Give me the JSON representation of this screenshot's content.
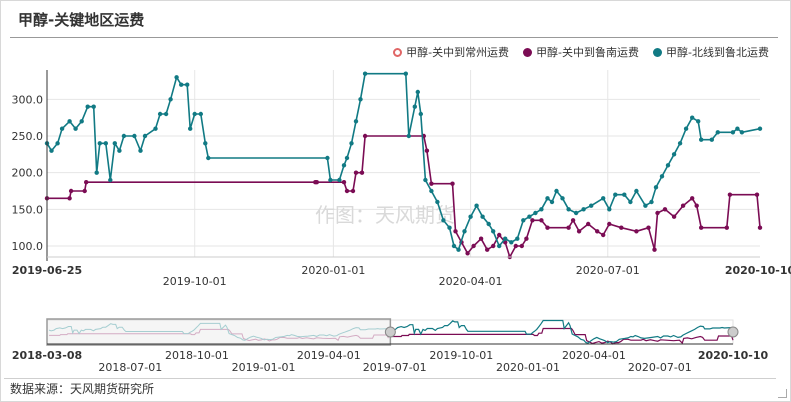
{
  "title": "甲醇-关键地区运费",
  "source": "数据来源：天风期货研究所",
  "watermark": "作图：天风期货",
  "chart_data": {
    "type": "line",
    "x_start": "2019-06-25",
    "x_end": "2020-10-10",
    "ylim": [
      85,
      340
    ],
    "yticks": [
      100,
      150,
      200,
      250,
      300
    ],
    "ytick_labels": [
      "100.0",
      "150.0",
      "200.0",
      "250.0",
      "300.0"
    ],
    "xticks": [
      "2019-06-25",
      "2019-10-01",
      "2020-01-01",
      "2020-04-01",
      "2020-07-01",
      "2020-10-10"
    ],
    "grid": true,
    "legend_position": "top-right",
    "series": [
      {
        "name": "甲醇-关中到常州运费",
        "color": "#e06666",
        "marker": "hollow-circle",
        "points": []
      },
      {
        "name": "甲醇-关中到鲁南运费",
        "color": "#7b0c54",
        "marker": "filled-circle",
        "points": [
          [
            "2019-06-25",
            165
          ],
          [
            "2019-07-10",
            165
          ],
          [
            "2019-07-11",
            175
          ],
          [
            "2019-07-20",
            175
          ],
          [
            "2019-07-21",
            187
          ],
          [
            "2019-12-20",
            187
          ],
          [
            "2019-12-21",
            187
          ],
          [
            "2020-01-08",
            187
          ],
          [
            "2020-01-10",
            175
          ],
          [
            "2020-01-14",
            175
          ],
          [
            "2020-01-16",
            200
          ],
          [
            "2020-01-20",
            200
          ],
          [
            "2020-01-22",
            250
          ],
          [
            "2020-03-01",
            250
          ],
          [
            "2020-03-03",
            230
          ],
          [
            "2020-03-06",
            185
          ],
          [
            "2020-03-20",
            185
          ],
          [
            "2020-03-22",
            120
          ],
          [
            "2020-03-26",
            105
          ],
          [
            "2020-03-30",
            90
          ],
          [
            "2020-04-03",
            100
          ],
          [
            "2020-04-08",
            110
          ],
          [
            "2020-04-12",
            95
          ],
          [
            "2020-04-16",
            100
          ],
          [
            "2020-04-20",
            115
          ],
          [
            "2020-04-24",
            105
          ],
          [
            "2020-04-27",
            85
          ],
          [
            "2020-05-01",
            100
          ],
          [
            "2020-05-05",
            100
          ],
          [
            "2020-05-08",
            110
          ],
          [
            "2020-05-12",
            135
          ],
          [
            "2020-05-18",
            135
          ],
          [
            "2020-05-22",
            125
          ],
          [
            "2020-06-05",
            125
          ],
          [
            "2020-06-08",
            135
          ],
          [
            "2020-06-12",
            120
          ],
          [
            "2020-06-18",
            130
          ],
          [
            "2020-06-24",
            120
          ],
          [
            "2020-06-28",
            115
          ],
          [
            "2020-07-02",
            130
          ],
          [
            "2020-07-10",
            125
          ],
          [
            "2020-07-20",
            120
          ],
          [
            "2020-07-28",
            125
          ],
          [
            "2020-08-01",
            95
          ],
          [
            "2020-08-03",
            145
          ],
          [
            "2020-08-08",
            150
          ],
          [
            "2020-08-14",
            140
          ],
          [
            "2020-08-20",
            155
          ],
          [
            "2020-08-26",
            165
          ],
          [
            "2020-08-29",
            155
          ],
          [
            "2020-09-01",
            125
          ],
          [
            "2020-09-18",
            125
          ],
          [
            "2020-09-20",
            170
          ],
          [
            "2020-10-08",
            170
          ],
          [
            "2020-10-10",
            125
          ]
        ]
      },
      {
        "name": "甲醇-北线到鲁北运费",
        "color": "#117a84",
        "marker": "filled-circle",
        "points": [
          [
            "2019-06-25",
            240
          ],
          [
            "2019-06-28",
            230
          ],
          [
            "2019-07-02",
            240
          ],
          [
            "2019-07-05",
            260
          ],
          [
            "2019-07-10",
            270
          ],
          [
            "2019-07-14",
            260
          ],
          [
            "2019-07-18",
            270
          ],
          [
            "2019-07-22",
            290
          ],
          [
            "2019-07-26",
            290
          ],
          [
            "2019-07-28",
            200
          ],
          [
            "2019-07-30",
            240
          ],
          [
            "2019-08-03",
            240
          ],
          [
            "2019-08-06",
            190
          ],
          [
            "2019-08-09",
            240
          ],
          [
            "2019-08-12",
            230
          ],
          [
            "2019-08-15",
            250
          ],
          [
            "2019-08-22",
            250
          ],
          [
            "2019-08-26",
            230
          ],
          [
            "2019-08-29",
            250
          ],
          [
            "2019-09-05",
            260
          ],
          [
            "2019-09-08",
            280
          ],
          [
            "2019-09-12",
            280
          ],
          [
            "2019-09-15",
            300
          ],
          [
            "2019-09-19",
            330
          ],
          [
            "2019-09-22",
            320
          ],
          [
            "2019-09-26",
            320
          ],
          [
            "2019-09-28",
            260
          ],
          [
            "2019-10-01",
            280
          ],
          [
            "2019-10-05",
            280
          ],
          [
            "2019-10-08",
            240
          ],
          [
            "2019-10-10",
            220
          ],
          [
            "2019-12-28",
            220
          ],
          [
            "2019-12-30",
            190
          ],
          [
            "2020-01-05",
            190
          ],
          [
            "2020-01-08",
            210
          ],
          [
            "2020-01-10",
            220
          ],
          [
            "2020-01-13",
            240
          ],
          [
            "2020-01-16",
            270
          ],
          [
            "2020-01-19",
            300
          ],
          [
            "2020-01-22",
            335
          ],
          [
            "2020-02-18",
            335
          ],
          [
            "2020-02-20",
            250
          ],
          [
            "2020-02-24",
            290
          ],
          [
            "2020-02-26",
            310
          ],
          [
            "2020-02-28",
            280
          ],
          [
            "2020-03-02",
            190
          ],
          [
            "2020-03-06",
            175
          ],
          [
            "2020-03-10",
            160
          ],
          [
            "2020-03-14",
            135
          ],
          [
            "2020-03-18",
            125
          ],
          [
            "2020-03-21",
            100
          ],
          [
            "2020-03-24",
            95
          ],
          [
            "2020-03-28",
            120
          ],
          [
            "2020-04-01",
            140
          ],
          [
            "2020-04-05",
            155
          ],
          [
            "2020-04-09",
            140
          ],
          [
            "2020-04-13",
            130
          ],
          [
            "2020-04-16",
            120
          ],
          [
            "2020-04-20",
            100
          ],
          [
            "2020-04-24",
            110
          ],
          [
            "2020-04-28",
            105
          ],
          [
            "2020-05-02",
            110
          ],
          [
            "2020-05-06",
            135
          ],
          [
            "2020-05-10",
            140
          ],
          [
            "2020-05-14",
            145
          ],
          [
            "2020-05-18",
            150
          ],
          [
            "2020-05-22",
            165
          ],
          [
            "2020-05-25",
            160
          ],
          [
            "2020-05-28",
            175
          ],
          [
            "2020-06-01",
            165
          ],
          [
            "2020-06-05",
            150
          ],
          [
            "2020-06-10",
            145
          ],
          [
            "2020-06-15",
            150
          ],
          [
            "2020-06-20",
            155
          ],
          [
            "2020-06-28",
            165
          ],
          [
            "2020-07-02",
            150
          ],
          [
            "2020-07-06",
            170
          ],
          [
            "2020-07-12",
            170
          ],
          [
            "2020-07-16",
            160
          ],
          [
            "2020-07-20",
            175
          ],
          [
            "2020-07-26",
            155
          ],
          [
            "2020-07-30",
            160
          ],
          [
            "2020-08-02",
            180
          ],
          [
            "2020-08-06",
            195
          ],
          [
            "2020-08-10",
            210
          ],
          [
            "2020-08-14",
            225
          ],
          [
            "2020-08-18",
            240
          ],
          [
            "2020-08-22",
            260
          ],
          [
            "2020-08-26",
            275
          ],
          [
            "2020-08-30",
            270
          ],
          [
            "2020-09-01",
            245
          ],
          [
            "2020-09-08",
            245
          ],
          [
            "2020-09-12",
            255
          ],
          [
            "2020-09-22",
            255
          ],
          [
            "2020-09-25",
            260
          ],
          [
            "2020-09-28",
            255
          ],
          [
            "2020-10-10",
            260
          ]
        ]
      }
    ]
  },
  "navigator": {
    "x_start": "2018-03-08",
    "x_end": "2020-10-10",
    "selected_start": "2018-03-08",
    "selected_end": "2019-06-25",
    "tick_labels": [
      "2018-07-01",
      "2018-10-01",
      "2019-01-01",
      "2019-04-01",
      "2019-07-01",
      "2019-10-01",
      "2020-01-01",
      "2020-04-01",
      "2020-07-01"
    ],
    "start_label": "2018-03-08",
    "end_label": "2020-10-10"
  }
}
